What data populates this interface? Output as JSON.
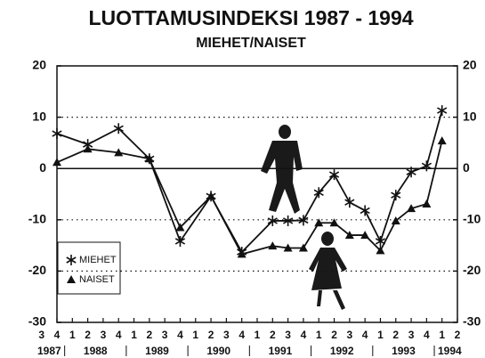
{
  "chart_data": {
    "type": "line",
    "title": "LUOTTAMUSINDEKSI 1987 - 1994",
    "subtitle": "MIEHET/NAISET",
    "xlim": [
      1987.75,
      1994.25
    ],
    "xticks": [
      {
        "value": 1987.5,
        "label": "3"
      },
      {
        "value": 1987.75,
        "label": "4"
      },
      {
        "value": 1988,
        "label": "1"
      },
      {
        "value": 1988.25,
        "label": "2"
      },
      {
        "value": 1988.5,
        "label": "3"
      },
      {
        "value": 1988.75,
        "label": "4"
      },
      {
        "value": 1989,
        "label": "1"
      },
      {
        "value": 1989.25,
        "label": "2"
      },
      {
        "value": 1989.5,
        "label": "3"
      },
      {
        "value": 1989.75,
        "label": "4"
      },
      {
        "value": 1990,
        "label": "1"
      },
      {
        "value": 1990.25,
        "label": "2"
      },
      {
        "value": 1990.5,
        "label": "3"
      },
      {
        "value": 1990.75,
        "label": "4"
      },
      {
        "value": 1991,
        "label": "1"
      },
      {
        "value": 1991.25,
        "label": "2"
      },
      {
        "value": 1991.5,
        "label": "3"
      },
      {
        "value": 1991.75,
        "label": "4"
      },
      {
        "value": 1992,
        "label": "1"
      },
      {
        "value": 1992.25,
        "label": "2"
      },
      {
        "value": 1992.5,
        "label": "3"
      },
      {
        "value": 1992.75,
        "label": "4"
      },
      {
        "value": 1993,
        "label": "1"
      },
      {
        "value": 1993.25,
        "label": "2"
      },
      {
        "value": 1993.5,
        "label": "3"
      },
      {
        "value": 1993.75,
        "label": "4"
      },
      {
        "value": 1994,
        "label": "1"
      },
      {
        "value": 1994.25,
        "label": "2"
      }
    ],
    "year_labels": [
      "1987",
      "1988",
      "1989",
      "1990",
      "1991",
      "1992",
      "1993",
      "1994"
    ],
    "ylim": [
      -30,
      20
    ],
    "yticks": [
      -30,
      -20,
      -10,
      0,
      10,
      20
    ],
    "y2lim": [
      -30,
      20
    ],
    "y2ticks": [
      -30,
      -20,
      -10,
      0,
      10,
      20
    ],
    "grid": true,
    "zero_line": true,
    "legend": "lower left",
    "x": [
      1987.75,
      1988.25,
      1988.75,
      1989.25,
      1989.75,
      1990.25,
      1990.75,
      1991.25,
      1991.5,
      1991.75,
      1992,
      1992.25,
      1992.5,
      1992.75,
      1993,
      1993.25,
      1993.5,
      1993.75,
      1994
    ],
    "series": [
      {
        "name": "MIEHET",
        "color": "#111111",
        "marker": "asterisk",
        "values": [
          6.8,
          4.7,
          7.8,
          1.9,
          -14.2,
          -5.4,
          -16.3,
          -10.2,
          -10.2,
          -10.1,
          -4.7,
          -1.2,
          -6.6,
          -8.2,
          -14.2,
          -5.2,
          -0.7,
          0.5,
          11.3
        ]
      },
      {
        "name": "NAISET",
        "color": "#111111",
        "marker": "triangle",
        "values": [
          1.2,
          3.8,
          3.1,
          1.9,
          -11.5,
          -5.4,
          -16.7,
          -15.1,
          -15.5,
          -15.5,
          -10.6,
          -10.6,
          -13.0,
          -13.0,
          -16.0,
          -10.2,
          -7.8,
          -6.9,
          5.4
        ]
      }
    ]
  }
}
